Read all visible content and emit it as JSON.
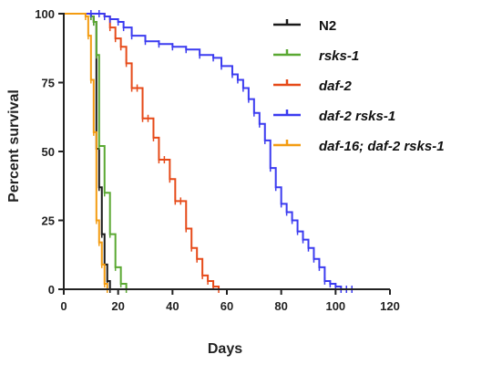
{
  "chart_data": {
    "type": "line",
    "xlabel": "Days",
    "ylabel": "Percent survival",
    "xlim": [
      0,
      120
    ],
    "ylim": [
      0,
      100
    ],
    "x_ticks": [
      0,
      20,
      40,
      60,
      80,
      100,
      120
    ],
    "y_ticks": [
      0,
      25,
      50,
      75,
      100
    ],
    "x_tick_labels": [
      "0",
      "20",
      "40",
      "60",
      "80",
      "100",
      "120"
    ],
    "y_tick_labels": [
      "0",
      "25",
      "50",
      "75",
      "100"
    ],
    "grid": false,
    "legend_position": "top-right",
    "series": [
      {
        "name": "N2",
        "italic": false,
        "color": "#1a1a1a",
        "x": [
          0,
          10,
          11,
          12,
          13,
          14,
          15,
          16,
          17
        ],
        "y": [
          100,
          99,
          97,
          51,
          37,
          20,
          9,
          3,
          0
        ]
      },
      {
        "name": "rsks-1",
        "italic": true,
        "color": "#5aa832",
        "x": [
          0,
          10,
          11,
          12,
          13,
          15,
          17,
          19,
          21,
          23
        ],
        "y": [
          100,
          99,
          97,
          85,
          52,
          35,
          20,
          8,
          2,
          0
        ]
      },
      {
        "name": "daf-2",
        "italic": true,
        "color": "#e64a19",
        "x": [
          0,
          15,
          17,
          19,
          21,
          23,
          25,
          27,
          29,
          31,
          33,
          35,
          37,
          39,
          41,
          43,
          45,
          47,
          49,
          51,
          53,
          55,
          57
        ],
        "y": [
          100,
          99,
          95,
          91,
          88,
          82,
          73,
          73,
          62,
          62,
          55,
          47,
          47,
          40,
          32,
          32,
          22,
          15,
          11,
          5,
          3,
          1,
          0
        ]
      },
      {
        "name": "daf-2 rsks-1",
        "italic": true,
        "color": "#3b3bf0",
        "x": [
          0,
          10,
          13,
          15,
          17,
          20,
          22,
          25,
          30,
          35,
          40,
          45,
          50,
          55,
          58,
          62,
          64,
          66,
          68,
          70,
          72,
          74,
          76,
          78,
          80,
          82,
          84,
          86,
          88,
          90,
          92,
          94,
          96,
          98,
          100,
          102,
          104,
          106
        ],
        "y": [
          100,
          100,
          100,
          99,
          98,
          97,
          95,
          92,
          90,
          89,
          88,
          87,
          85,
          84,
          81,
          78,
          76,
          73,
          69,
          64,
          60,
          54,
          44,
          37,
          31,
          28,
          25,
          21,
          18,
          15,
          11,
          8,
          3,
          2,
          1,
          0,
          0,
          0
        ]
      },
      {
        "name": "daf-16; daf-2 rsks-1",
        "italic": true,
        "color": "#f39c12",
        "x": [
          0,
          8,
          9,
          10,
          11,
          12,
          13,
          14,
          15,
          16
        ],
        "y": [
          100,
          99,
          92,
          76,
          57,
          25,
          17,
          9,
          2,
          0
        ]
      }
    ]
  }
}
